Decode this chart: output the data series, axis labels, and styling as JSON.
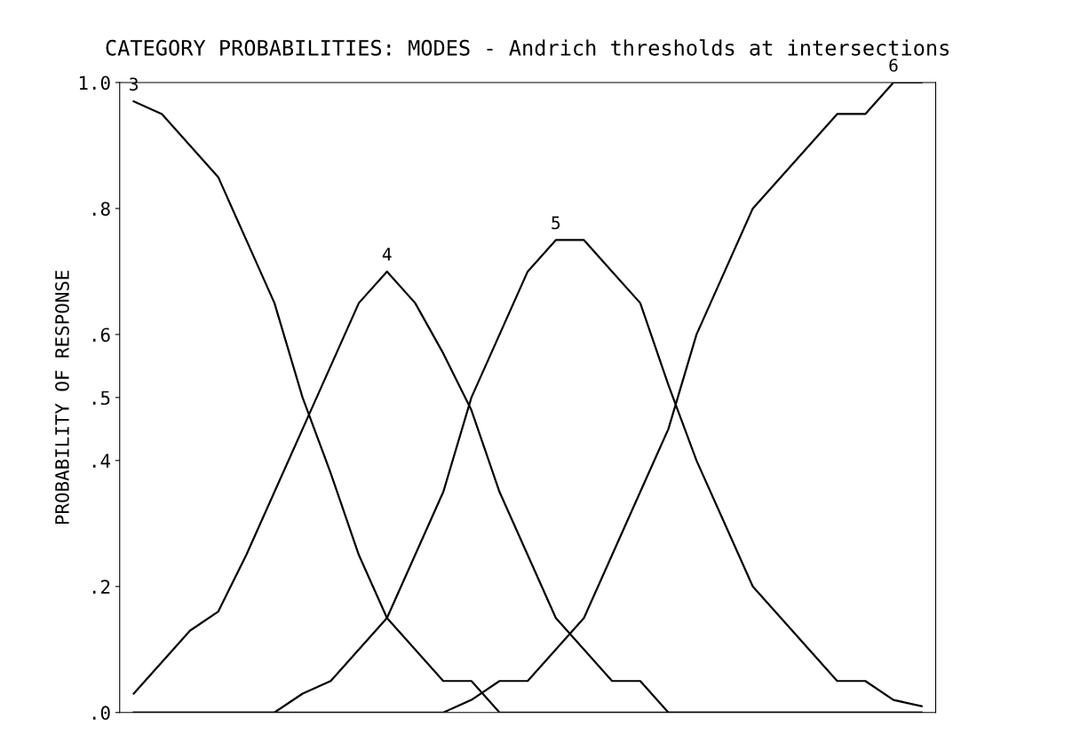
{
  "chart_data": {
    "type": "line",
    "title": "CATEGORY PROBABILITIES: MODES - Andrich thresholds at intersections",
    "ylabel": "PROBABILITY OF RESPONSE",
    "categories": [
      null,
      null,
      null,
      null,
      null,
      null,
      null,
      null,
      null,
      null,
      null,
      null,
      null,
      null,
      null,
      null,
      null,
      null,
      null,
      null,
      null,
      null,
      null,
      null,
      null,
      null,
      null,
      null,
      null
    ],
    "ylim": [
      0,
      1.0
    ],
    "yticks": [
      {
        "value": 0,
        "label": ".0"
      },
      {
        "value": 0.2,
        "label": ".2"
      },
      {
        "value": 0.4,
        "label": ".4"
      },
      {
        "value": 0.5,
        "label": ".5"
      },
      {
        "value": 0.6,
        "label": ".6"
      },
      {
        "value": 0.8,
        "label": ".8"
      },
      {
        "value": 1.0,
        "label": "1.0"
      }
    ],
    "grid": false,
    "legend": false,
    "marker": "none",
    "line_style": "solid",
    "series": [
      {
        "name": "3",
        "color": "#000000",
        "values": [
          0.97,
          0.95,
          0.9,
          0.85,
          0.75,
          0.65,
          0.5,
          0.38,
          0.25,
          0.15,
          0.1,
          0.05,
          0.05,
          0,
          0,
          0,
          0,
          0,
          0,
          0,
          0,
          0,
          0,
          0,
          0,
          0,
          0,
          0,
          0
        ]
      },
      {
        "name": "4",
        "color": "#000000",
        "values": [
          0.03,
          0.08,
          0.13,
          0.16,
          0.25,
          0.35,
          0.45,
          0.55,
          0.65,
          0.7,
          0.65,
          0.57,
          0.48,
          0.35,
          0.25,
          0.15,
          0.1,
          0.05,
          0.05,
          0,
          0,
          0,
          0,
          0,
          0,
          0,
          0,
          0,
          0
        ]
      },
      {
        "name": "5",
        "color": "#000000",
        "values": [
          0,
          0,
          0,
          0,
          0,
          0,
          0.03,
          0.05,
          0.1,
          0.15,
          0.25,
          0.35,
          0.5,
          0.6,
          0.7,
          0.75,
          0.75,
          0.7,
          0.65,
          0.52,
          0.4,
          0.3,
          0.2,
          0.15,
          0.1,
          0.05,
          0.05,
          0.02,
          0.01
        ]
      },
      {
        "name": "6",
        "color": "#000000",
        "values": [
          0,
          0,
          0,
          0,
          0,
          0,
          0,
          0,
          0,
          0,
          0,
          0,
          0.02,
          0.05,
          0.05,
          0.1,
          0.15,
          0.25,
          0.35,
          0.45,
          0.6,
          0.7,
          0.8,
          0.85,
          0.9,
          0.95,
          0.95,
          1.0,
          1.0
        ]
      }
    ]
  }
}
